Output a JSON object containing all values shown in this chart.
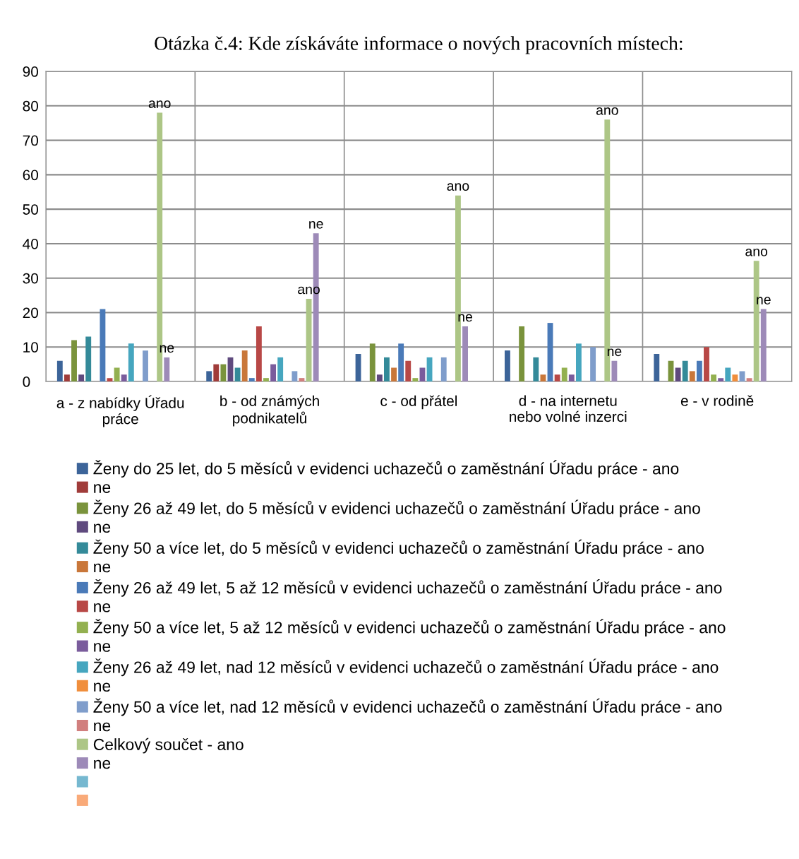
{
  "chart_data": {
    "type": "bar",
    "title": "Otázka č.4: Kde získáváte informace o nových pracovních místech:",
    "categories": [
      "a - z nabídky Úřadu práce",
      "b - od známých podnikatelů",
      "c - od přátel",
      "d - na internetu nebo volné inzerci",
      "e - v rodině"
    ],
    "ylim": [
      0,
      90
    ],
    "yticks": [
      0,
      10,
      20,
      30,
      40,
      50,
      60,
      70,
      80,
      90
    ],
    "grid": true,
    "legend": "bottom",
    "series": [
      {
        "name": "Ženy do 25 let, do 5 měsíců v evidenci uchazečů o zaměstnání Úřadu práce - ano",
        "color": "#3c6499",
        "values": [
          6,
          3,
          8,
          9,
          8
        ]
      },
      {
        "name": "ne",
        "color": "#a03c3a",
        "values": [
          2,
          5,
          0,
          0,
          0
        ]
      },
      {
        "name": "Ženy 26 až 49 let, do 5 měsíců v evidenci uchazečů o zaměstnání Úřadu práce - ano",
        "color": "#7a933c",
        "values": [
          12,
          5,
          11,
          16,
          6
        ]
      },
      {
        "name": "ne",
        "color": "#5f4a7e",
        "values": [
          2,
          7,
          2,
          0,
          4
        ]
      },
      {
        "name": "Ženy 50 a více let, do 5 měsíců v evidenci uchazečů o zaměstnání Úřadu práce - ano",
        "color": "#348a99",
        "values": [
          13,
          4,
          7,
          7,
          6
        ]
      },
      {
        "name": "ne",
        "color": "#c9773a",
        "values": [
          0,
          9,
          4,
          2,
          3
        ]
      },
      {
        "name": "Ženy 26 až 49 let, 5 až 12 měsíců v evidenci uchazečů o zaměstnání Úřadu práce - ano",
        "color": "#4a7ab8",
        "values": [
          21,
          1,
          11,
          17,
          6
        ]
      },
      {
        "name": "ne",
        "color": "#b84846",
        "values": [
          1,
          16,
          6,
          2,
          10
        ]
      },
      {
        "name": "Ženy 50 a více let, 5 až 12 měsíců v evidenci uchazečů o zaměstnání Úřadu práce - ano",
        "color": "#93b050",
        "values": [
          4,
          1,
          1,
          4,
          2
        ]
      },
      {
        "name": "ne",
        "color": "#7a5c9c",
        "values": [
          2,
          5,
          4,
          2,
          1
        ]
      },
      {
        "name": "Ženy 26 až 49 let, nad 12 měsíců v evidenci uchazečů o zaměstnání Úřadu práce - ano",
        "color": "#46a6bf",
        "values": [
          11,
          7,
          7,
          11,
          4
        ]
      },
      {
        "name": "ne",
        "color": "#f08e3c",
        "values": [
          0,
          0,
          0,
          0,
          2
        ]
      },
      {
        "name": "Ženy 50 a více let, nad 12 měsíců v evidenci uchazečů o zaměstnání Úřadu práce - ano",
        "color": "#7f9dcb",
        "values": [
          9,
          3,
          7,
          10,
          3
        ]
      },
      {
        "name": "ne",
        "color": "#d17f7e",
        "values": [
          0,
          1,
          0,
          0,
          1
        ]
      },
      {
        "name": "Celkový součet - ano",
        "color": "#adc686",
        "values": [
          78,
          24,
          54,
          76,
          35
        ],
        "value_labels": [
          "ano",
          "ano",
          "ano",
          "ano",
          "ano"
        ]
      },
      {
        "name": "ne",
        "color": "#9d8ab8",
        "values": [
          7,
          43,
          16,
          6,
          21
        ],
        "value_labels": [
          "ne",
          "ne",
          "ne",
          "ne",
          "ne"
        ]
      },
      {
        "color": "#76b8d0",
        "values": [
          null,
          null,
          null,
          null,
          null
        ]
      },
      {
        "color": "#f9aa79",
        "values": [
          null,
          null,
          null,
          null,
          null
        ]
      }
    ]
  }
}
